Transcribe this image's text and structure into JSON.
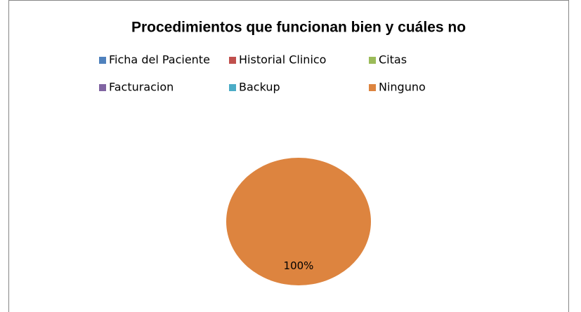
{
  "chart_data": {
    "type": "pie",
    "title": "Procedimientos que funcionan bien y cuáles no",
    "categories": [
      "Ficha del Paciente",
      "Historial Clinico",
      "Citas",
      "Facturacion",
      "Backup",
      "Ninguno"
    ],
    "values": [
      0,
      0,
      0,
      0,
      0,
      100
    ],
    "value_labels": [
      null,
      null,
      null,
      null,
      null,
      "100%"
    ],
    "colors": [
      "#4f81bd",
      "#c0504d",
      "#9bbb59",
      "#8064a2",
      "#4bacc6",
      "#dd843f"
    ],
    "legend": "top"
  }
}
